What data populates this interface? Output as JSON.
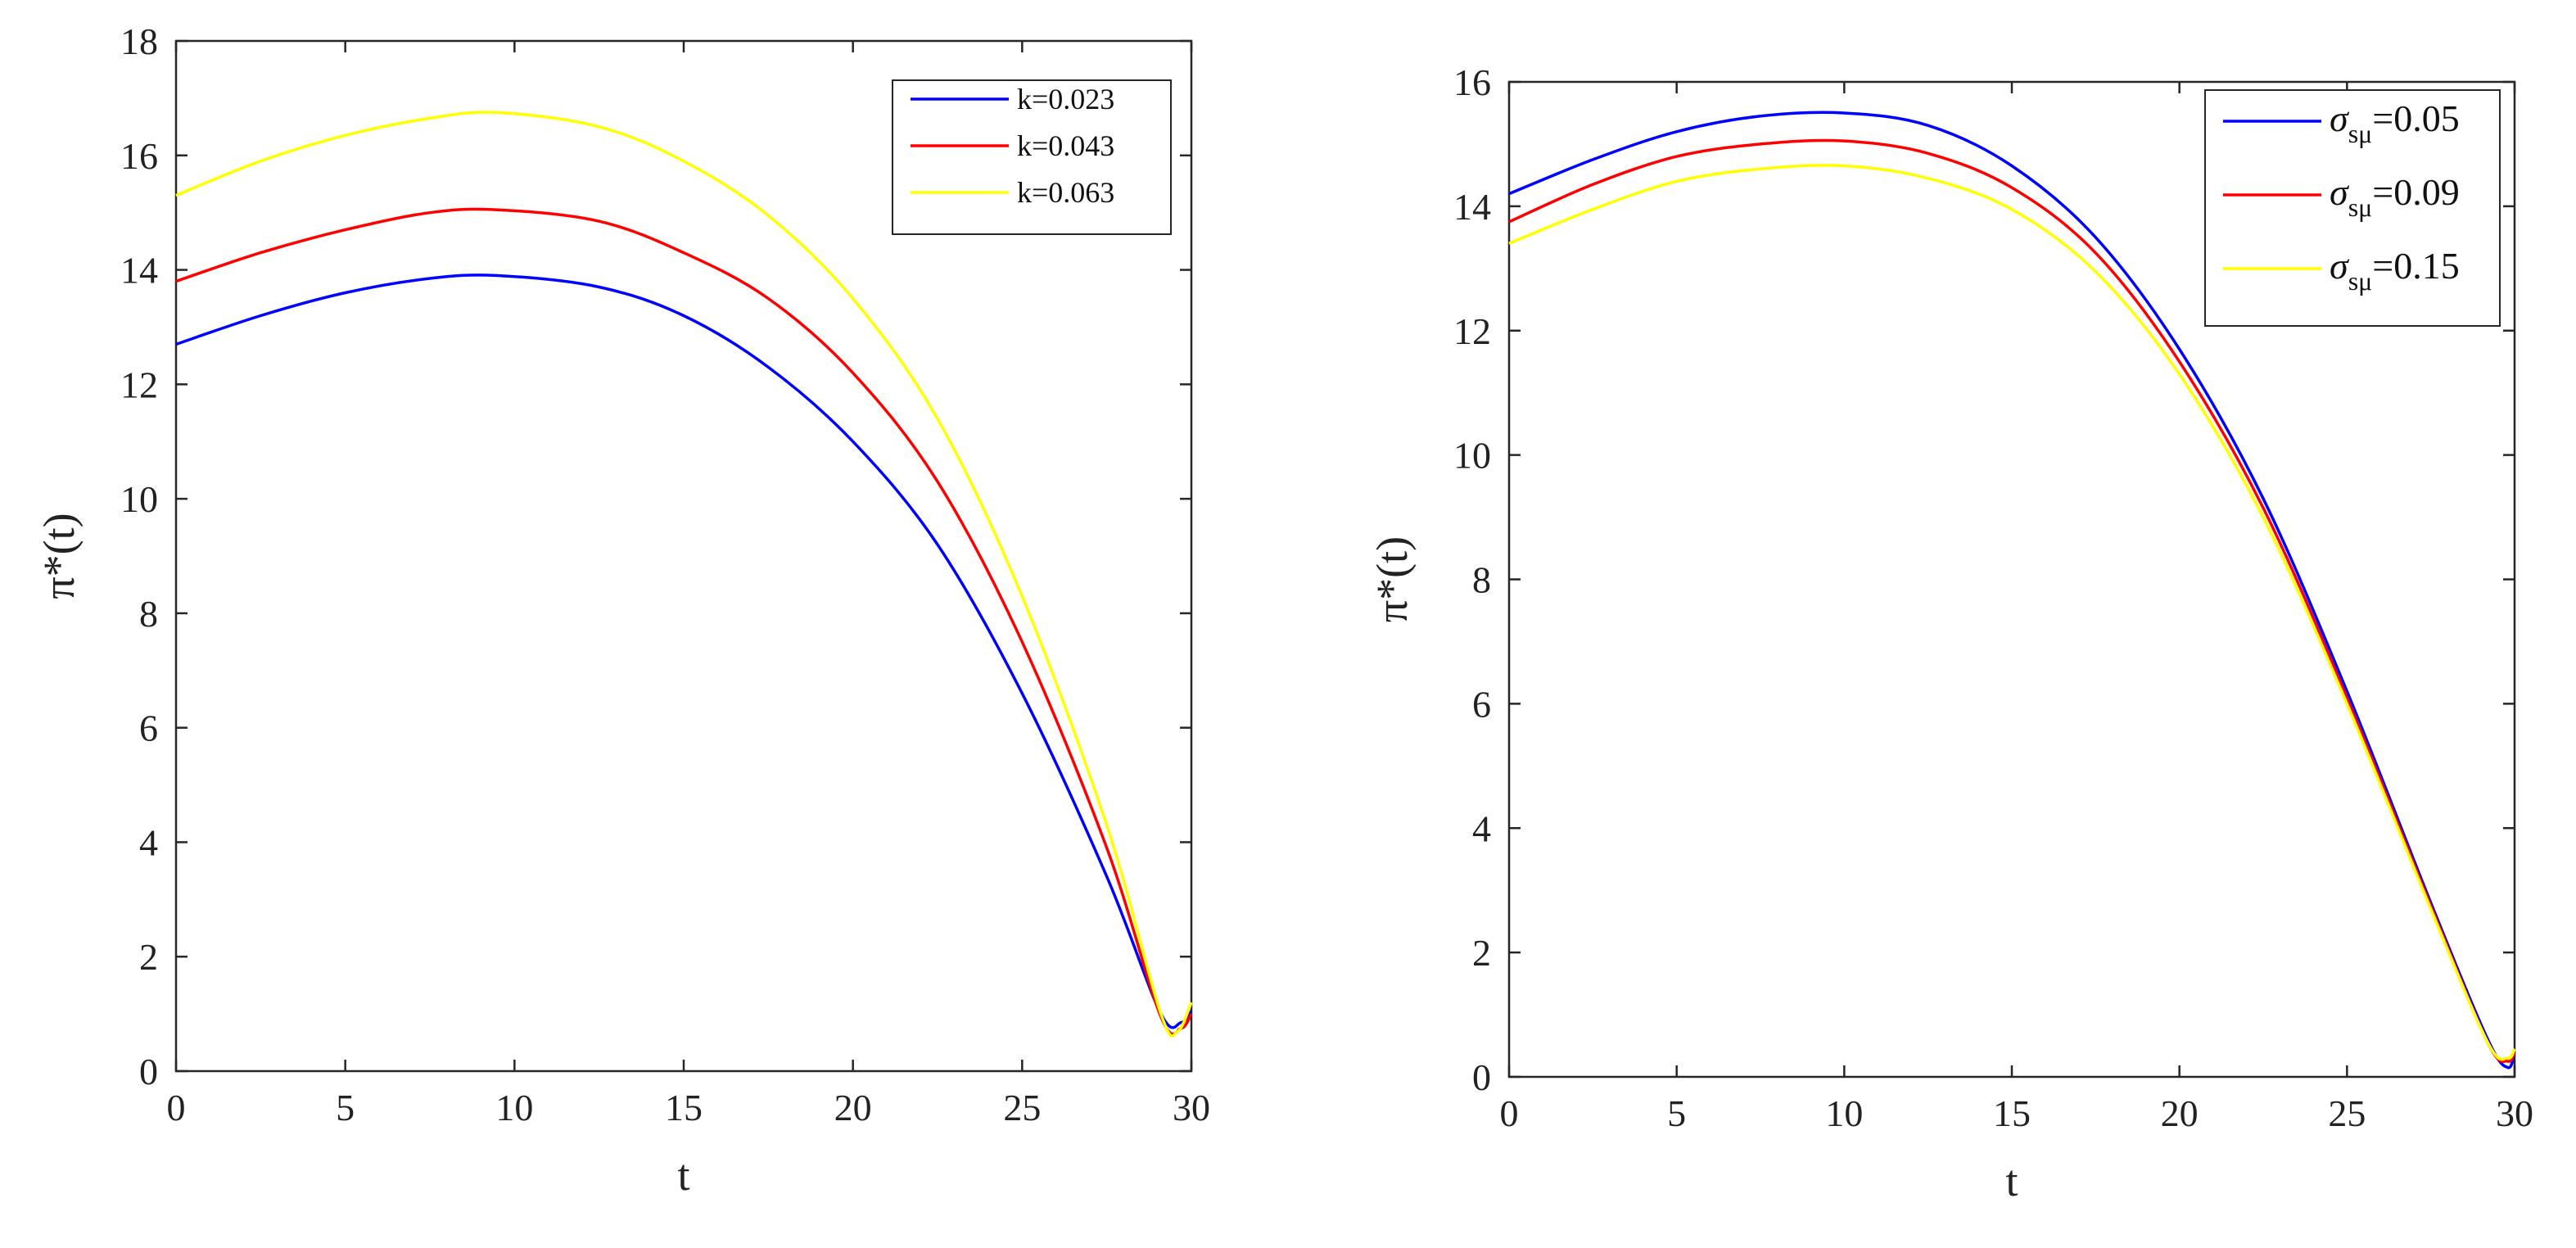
{
  "chart_data": [
    {
      "type": "line",
      "title": "",
      "xlabel": "t",
      "ylabel": "π*(t)",
      "xlim": [
        0,
        30
      ],
      "ylim": [
        0,
        18
      ],
      "xticks": [
        0,
        5,
        10,
        15,
        20,
        25,
        30
      ],
      "yticks": [
        0,
        2,
        4,
        6,
        8,
        10,
        12,
        14,
        16,
        18
      ],
      "legend_position": "top-right",
      "series": [
        {
          "name": "k=0.023",
          "color": "#0000ff",
          "x": [
            0,
            2.5,
            5,
            7.5,
            9.5,
            12.5,
            15,
            17.5,
            20,
            22.5,
            25,
            27.5,
            29.1,
            29.7,
            30
          ],
          "values": [
            12.7,
            13.2,
            13.6,
            13.85,
            13.9,
            13.7,
            13.2,
            12.3,
            11.0,
            9.2,
            6.6,
            3.4,
            1.0,
            0.85,
            1.05
          ]
        },
        {
          "name": "k=0.043",
          "color": "#ff0000",
          "x": [
            0,
            2.5,
            5,
            7.5,
            9.5,
            12.5,
            15,
            17.5,
            20,
            22.5,
            25,
            27.5,
            29.1,
            29.7,
            30
          ],
          "values": [
            13.8,
            14.3,
            14.7,
            15.0,
            15.05,
            14.85,
            14.3,
            13.5,
            12.2,
            10.3,
            7.5,
            3.9,
            0.95,
            0.75,
            1.0
          ]
        },
        {
          "name": "k=0.063",
          "color": "#ffff00",
          "x": [
            0,
            2.5,
            5,
            7.5,
            9.5,
            12.5,
            15,
            17.5,
            20,
            22.5,
            25,
            27.5,
            29.1,
            29.6,
            30
          ],
          "values": [
            15.3,
            15.9,
            16.35,
            16.65,
            16.75,
            16.5,
            15.9,
            14.95,
            13.5,
            11.4,
            8.3,
            4.3,
            1.0,
            0.7,
            1.2
          ]
        }
      ]
    },
    {
      "type": "line",
      "title": "",
      "xlabel": "t",
      "ylabel": "π*(t)",
      "xlim": [
        0,
        30
      ],
      "ylim": [
        0,
        16
      ],
      "xticks": [
        0,
        5,
        10,
        15,
        20,
        25,
        30
      ],
      "yticks": [
        0,
        2,
        4,
        6,
        8,
        10,
        12,
        14,
        16
      ],
      "legend_position": "top-right",
      "series": [
        {
          "name": "σsμ=0.05",
          "label_prefix": "σ",
          "label_sub": "sμ",
          "label_suffix": "=0.05",
          "color": "#0000ff",
          "x": [
            0,
            2.5,
            5,
            7.5,
            10,
            12.5,
            15,
            17.5,
            20,
            22.5,
            25,
            27.5,
            29.2,
            29.8,
            30
          ],
          "values": [
            14.2,
            14.75,
            15.2,
            15.45,
            15.5,
            15.3,
            14.65,
            13.5,
            11.7,
            9.3,
            6.2,
            2.8,
            0.6,
            0.15,
            0.4
          ]
        },
        {
          "name": "σsμ=0.09",
          "label_prefix": "σ",
          "label_sub": "sμ",
          "label_suffix": "=0.09",
          "color": "#ff0000",
          "x": [
            0,
            2.5,
            5,
            7.5,
            10,
            12.5,
            15,
            17.5,
            20,
            22.5,
            25,
            27.5,
            29.2,
            29.8,
            30
          ],
          "values": [
            13.75,
            14.35,
            14.8,
            15.0,
            15.05,
            14.85,
            14.3,
            13.25,
            11.5,
            9.15,
            6.1,
            2.75,
            0.55,
            0.25,
            0.4
          ]
        },
        {
          "name": "σsμ=0.15",
          "label_prefix": "σ",
          "label_sub": "sμ",
          "label_suffix": "=0.15",
          "color": "#ffff00",
          "x": [
            0,
            2.5,
            5,
            7.5,
            10,
            12.5,
            15,
            17.5,
            20,
            22.5,
            25,
            27.5,
            29.2,
            29.8,
            30
          ],
          "values": [
            13.4,
            13.95,
            14.4,
            14.6,
            14.65,
            14.45,
            13.95,
            12.95,
            11.3,
            9.0,
            6.0,
            2.7,
            0.55,
            0.3,
            0.45
          ]
        }
      ]
    }
  ]
}
